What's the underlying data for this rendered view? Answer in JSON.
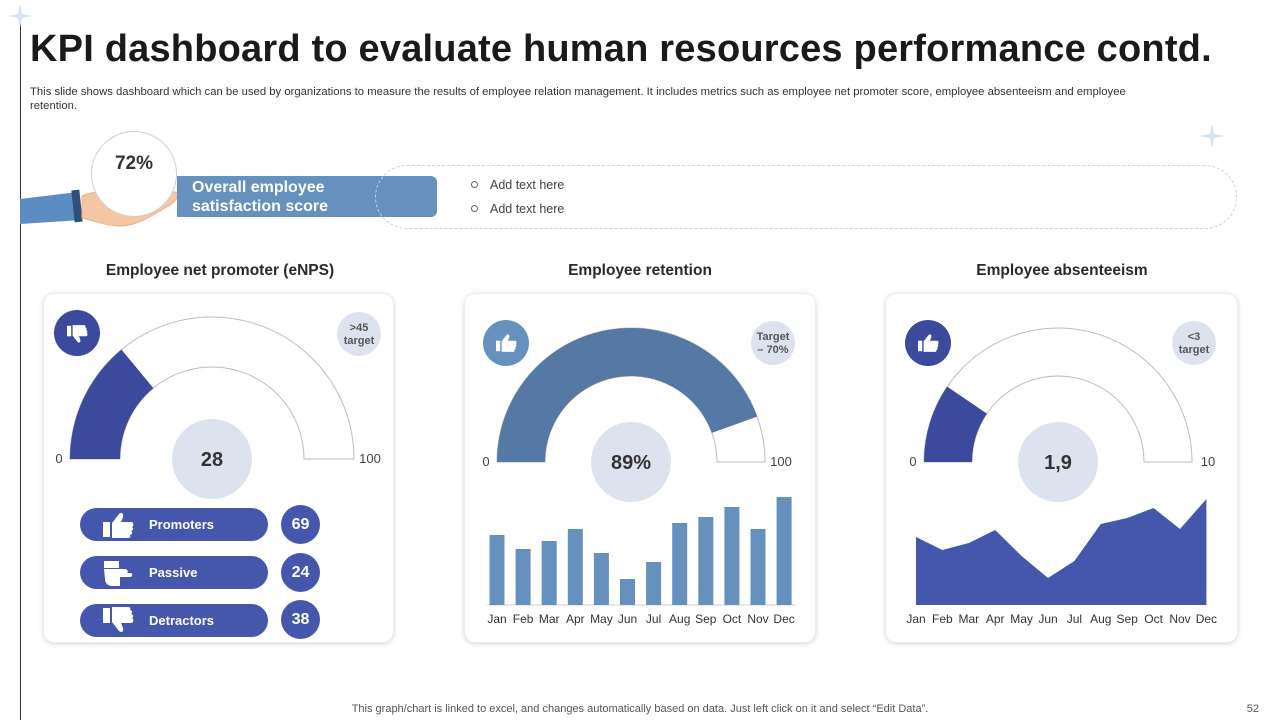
{
  "title": "KPI dashboard to evaluate human resources performance contd.",
  "subtitle": "This slide shows dashboard which can be used by organizations to measure the results of employee relation management. It includes metrics such as employee net promoter score, employee absenteeism and employee retention.",
  "overall": {
    "value": "72%",
    "label_line1": "Overall employee",
    "label_line2": "satisfaction score",
    "notes": [
      "Add text here",
      "Add text here"
    ]
  },
  "footer": "This graph/chart is linked to excel,  and changes automatically based on data. Just left click on it and select “Edit Data”.",
  "page_number": "52",
  "colors": {
    "navy": "#3b4a9c",
    "indigo": "#4557ad",
    "steel": "#5579a4",
    "bar": "#6690bd",
    "badge": "#dde2ef",
    "banner": "#6690bd"
  },
  "legend": [
    {
      "label": "Promoters",
      "value": "69",
      "icon": "thumbs-up-icon"
    },
    {
      "label": "Passive",
      "value": "24",
      "icon": "thumb-side-icon"
    },
    {
      "label": "Detractors",
      "value": "38",
      "icon": "thumbs-down-icon"
    }
  ],
  "chart_data": [
    {
      "type": "gauge",
      "title": "Employee net promoter (eNPS)",
      "value": 28,
      "value_label": "28",
      "min": 0,
      "max": 100,
      "min_label": "0",
      "max_label": "100",
      "target_line1": ">45",
      "target_line2": "target",
      "icon": "thumbs-down-icon"
    },
    {
      "type": "gauge",
      "title": "Employee retention",
      "value": 89,
      "value_label": "89%",
      "min": 0,
      "max": 100,
      "min_label": "0",
      "max_label": "100",
      "target_line1": "Target",
      "target_line2": "– 70%",
      "icon": "thumbs-up-icon"
    },
    {
      "type": "bar",
      "categories": [
        "Jan",
        "Feb",
        "Mar",
        "Apr",
        "May",
        "Jun",
        "Jul",
        "Aug",
        "Sep",
        "Oct",
        "Nov",
        "Dec"
      ],
      "values": [
        70,
        56,
        64,
        76,
        52,
        26,
        43,
        82,
        88,
        98,
        76,
        108
      ],
      "ylim": [
        0,
        110
      ]
    },
    {
      "type": "gauge",
      "title": "Employee absenteeism",
      "value": 1.9,
      "value_label": "1,9",
      "min": 0,
      "max": 10,
      "min_label": "0",
      "max_label": "10",
      "target_line1": "<3",
      "target_line2": "target",
      "icon": "thumbs-up-icon"
    },
    {
      "type": "area",
      "categories": [
        "Jan",
        "Feb",
        "Mar",
        "Apr",
        "May",
        "Jun",
        "Jul",
        "Aug",
        "Sep",
        "Oct",
        "Nov",
        "Dec"
      ],
      "values": [
        68,
        55,
        62,
        75,
        49,
        27,
        44,
        81,
        87,
        97,
        76,
        106
      ],
      "ylim": [
        0,
        110
      ]
    }
  ]
}
